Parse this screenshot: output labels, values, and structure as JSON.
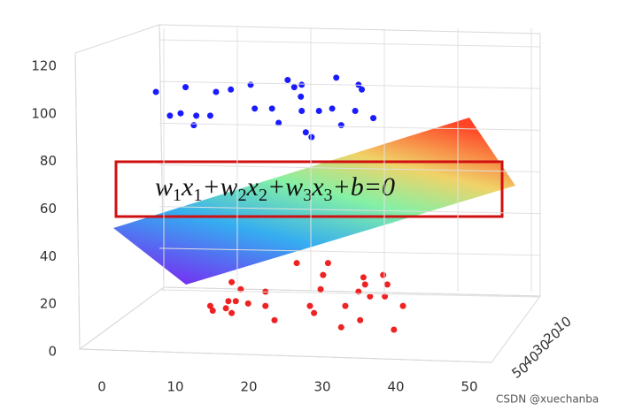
{
  "chart_data": {
    "type": "scatter3d",
    "annotation": [
      "w",
      "1",
      "x",
      "1",
      "+w",
      "2",
      "x",
      "2",
      "+w",
      "3",
      "x",
      "3",
      "+b=0"
    ],
    "watermark": "CSDN @xuechanba",
    "xlim": [
      0,
      50
    ],
    "xticks": [
      0,
      10,
      20,
      30,
      40,
      50
    ],
    "ylim": [
      0,
      50
    ],
    "yticks": [
      10,
      20,
      30,
      40,
      50
    ],
    "zlim": [
      0,
      120
    ],
    "zticks": [
      0,
      20,
      40,
      60,
      80,
      100,
      120
    ],
    "series": [
      {
        "color": "#1a1aff",
        "x": [
          4.2,
          7.8,
          11.5,
          13.3,
          15.7,
          20.2,
          21.9,
          26.1,
          28.8,
          29.2,
          5.9,
          7.2,
          9.1,
          10.8,
          8.8,
          16.2,
          18.3,
          19.1,
          21.0,
          21.8,
          21.9,
          24.0,
          25.6,
          26.7,
          28.4,
          30.6,
          22.4,
          23.1
        ],
        "z": [
          100,
          102,
          100,
          101,
          103,
          105,
          103,
          106,
          103,
          101,
          90,
          91,
          90,
          90,
          86,
          93,
          93,
          87,
          102,
          98,
          92,
          92,
          93,
          86,
          92,
          89,
          83,
          81
        ]
      },
      {
        "color": "#ee2222",
        "x": [
          13.4,
          14.5,
          13.9,
          13.0,
          10.8,
          11.1,
          12.7,
          13.4,
          15.4,
          17.5,
          18.6,
          21.3,
          25.1,
          24.5,
          24.2,
          22.9,
          23.4,
          27.2,
          26.7,
          29.0,
          29.4,
          29.6,
          28.8,
          30.2,
          31.8,
          32.3,
          32.0,
          34.2,
          33.1,
          17.5
        ],
        "z": [
          20,
          17,
          12,
          12,
          10,
          8,
          9,
          7,
          11,
          10,
          4,
          28,
          28,
          23,
          17,
          10,
          7,
          10,
          1,
          4,
          22,
          19,
          16,
          14,
          23,
          19,
          14,
          10,
          0,
          16
        ]
      }
    ]
  }
}
